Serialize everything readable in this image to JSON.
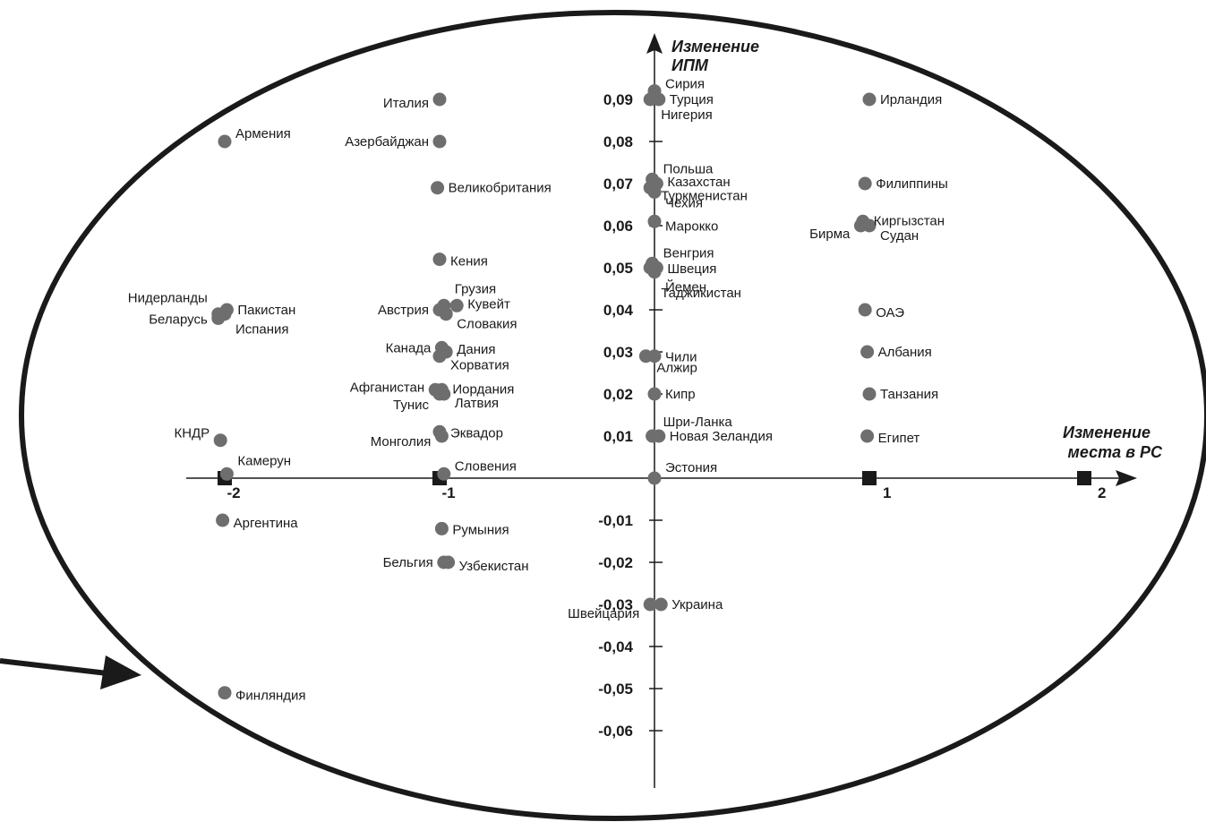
{
  "chart_data": {
    "type": "scatter",
    "xlabel": "Изменение места в РС",
    "ylabel": "Изменение ИПМ",
    "x_ticks": [
      {
        "value": -2,
        "label": "-2"
      },
      {
        "value": -1,
        "label": "-1"
      },
      {
        "value": 1,
        "label": "1"
      },
      {
        "value": 2,
        "label": "2"
      }
    ],
    "y_ticks": [
      {
        "value": 0.09,
        "label": "0,09"
      },
      {
        "value": 0.08,
        "label": "0,08"
      },
      {
        "value": 0.07,
        "label": "0,07"
      },
      {
        "value": 0.06,
        "label": "0,06"
      },
      {
        "value": 0.05,
        "label": "0,05"
      },
      {
        "value": 0.04,
        "label": "0,04"
      },
      {
        "value": 0.03,
        "label": "0,03"
      },
      {
        "value": 0.02,
        "label": "0,02"
      },
      {
        "value": 0.01,
        "label": "0,01"
      },
      {
        "value": -0.01,
        "label": "-0,01"
      },
      {
        "value": -0.02,
        "label": "-0,02"
      },
      {
        "value": -0.03,
        "label": "-0,03"
      },
      {
        "value": -0.04,
        "label": "-0,04"
      },
      {
        "value": -0.05,
        "label": "-0,05"
      },
      {
        "value": -0.06,
        "label": "-0,06"
      }
    ],
    "points": [
      {
        "label": "Сирия",
        "x": 0.0,
        "y": 0.092,
        "la": "right",
        "dy": -8
      },
      {
        "label": "Турция",
        "x": 0.02,
        "y": 0.09,
        "la": "right",
        "dy": 0
      },
      {
        "label": "Нигерия",
        "x": -0.02,
        "y": 0.09,
        "la": "right",
        "dy": 17
      },
      {
        "label": "Италия",
        "x": -1.0,
        "y": 0.09,
        "la": "left",
        "dy": 4
      },
      {
        "label": "Ирландия",
        "x": 1.0,
        "y": 0.09,
        "la": "right",
        "dy": 0
      },
      {
        "label": "Армения",
        "x": -2.0,
        "y": 0.08,
        "la": "right",
        "dy": -9
      },
      {
        "label": "Азербайджан",
        "x": -1.0,
        "y": 0.08,
        "la": "left",
        "dy": 0
      },
      {
        "label": "Великобритания",
        "x": -1.01,
        "y": 0.069,
        "la": "right",
        "dy": 0
      },
      {
        "label": "Польша",
        "x": -0.01,
        "y": 0.071,
        "la": "right",
        "dy": -12
      },
      {
        "label": "Казахстан",
        "x": 0.01,
        "y": 0.07,
        "la": "right",
        "dy": -2
      },
      {
        "label": "Туркменистан",
        "x": -0.02,
        "y": 0.069,
        "la": "right",
        "dy": 9
      },
      {
        "label": "Чехия",
        "x": 0.0,
        "y": 0.068,
        "la": "right",
        "dy": 12
      },
      {
        "label": "Филиппины",
        "x": 0.98,
        "y": 0.07,
        "la": "right",
        "dy": 0
      },
      {
        "label": "Марокко",
        "x": 0.0,
        "y": 0.061,
        "la": "right",
        "dy": 5
      },
      {
        "label": "Киргызстан",
        "x": 0.97,
        "y": 0.061,
        "la": "right",
        "dy": -1
      },
      {
        "label": "Судан",
        "x": 1.0,
        "y": 0.06,
        "la": "right",
        "dy": 11
      },
      {
        "label": "Бирма",
        "x": 0.96,
        "y": 0.06,
        "la": "left",
        "dy": 9
      },
      {
        "label": "Кения",
        "x": -1.0,
        "y": 0.052,
        "la": "right",
        "dy": 2
      },
      {
        "label": "Венгрия",
        "x": -0.01,
        "y": 0.051,
        "la": "right",
        "dy": -12
      },
      {
        "label": "Швеция",
        "x": 0.01,
        "y": 0.05,
        "la": "right",
        "dy": 1
      },
      {
        "label": "Йемен",
        "x": 0.0,
        "y": 0.049,
        "la": "right",
        "dy": 17
      },
      {
        "label": "Таджикистан",
        "x": -0.02,
        "y": 0.05,
        "la": "right",
        "dy": 28
      },
      {
        "label": "Нидерланды",
        "x": -2.03,
        "y": 0.039,
        "la": "left",
        "dy": -18
      },
      {
        "label": "Пакистан",
        "x": -1.99,
        "y": 0.04,
        "la": "right",
        "dy": 0
      },
      {
        "label": "Беларусь",
        "x": -2.03,
        "y": 0.038,
        "la": "left",
        "dy": 1
      },
      {
        "label": "Испания",
        "x": -2.0,
        "y": 0.039,
        "la": "right",
        "dy": 17
      },
      {
        "label": "Грузия",
        "x": -0.98,
        "y": 0.041,
        "la": "right",
        "dy": -19
      },
      {
        "label": "Австрия",
        "x": -1.0,
        "y": 0.04,
        "la": "left",
        "dy": 0
      },
      {
        "label": "Кувейт",
        "x": -0.92,
        "y": 0.041,
        "la": "right",
        "dy": -2
      },
      {
        "label": "Словакия",
        "x": -0.97,
        "y": 0.039,
        "la": "right",
        "dy": 11
      },
      {
        "label": "ОАЭ",
        "x": 0.98,
        "y": 0.04,
        "la": "right",
        "dy": 3
      },
      {
        "label": "Канада",
        "x": -0.99,
        "y": 0.031,
        "la": "left",
        "dy": 0
      },
      {
        "label": "Дания",
        "x": -0.97,
        "y": 0.03,
        "la": "right",
        "dy": -3
      },
      {
        "label": "Хорватия",
        "x": -1.0,
        "y": 0.029,
        "la": "right",
        "dy": 10
      },
      {
        "label": "Чили",
        "x": 0.0,
        "y": 0.029,
        "la": "right",
        "dy": 1
      },
      {
        "label": "Алжир",
        "x": -0.04,
        "y": 0.029,
        "la": "right",
        "dy": 13
      },
      {
        "label": "Албания",
        "x": 0.99,
        "y": 0.03,
        "la": "right",
        "dy": 0
      },
      {
        "label": "Афганистан",
        "x": -1.02,
        "y": 0.021,
        "la": "left",
        "dy": -3
      },
      {
        "label": "Иордания",
        "x": -0.99,
        "y": 0.021,
        "la": "right",
        "dy": -1
      },
      {
        "label": "Тунис",
        "x": -1.0,
        "y": 0.02,
        "la": "left",
        "dy": 12
      },
      {
        "label": "Латвия",
        "x": -0.98,
        "y": 0.02,
        "la": "right",
        "dy": 10
      },
      {
        "label": "Кипр",
        "x": 0.0,
        "y": 0.02,
        "la": "right",
        "dy": 0
      },
      {
        "label": "Танзания",
        "x": 1.0,
        "y": 0.02,
        "la": "right",
        "dy": 0
      },
      {
        "label": "Эквадор",
        "x": -1.0,
        "y": 0.011,
        "la": "right",
        "dy": 1
      },
      {
        "label": "Монголия",
        "x": -0.99,
        "y": 0.01,
        "la": "left",
        "dy": 6
      },
      {
        "label": "Шри-Ланка",
        "x": -0.01,
        "y": 0.01,
        "la": "right",
        "dy": -16
      },
      {
        "label": "Новая Зеландия",
        "x": 0.02,
        "y": 0.01,
        "la": "right",
        "dy": 0
      },
      {
        "label": "Египет",
        "x": 0.99,
        "y": 0.01,
        "la": "right",
        "dy": 2
      },
      {
        "label": "КНДР",
        "x": -2.02,
        "y": 0.009,
        "la": "left",
        "dy": -8
      },
      {
        "label": "Камерун",
        "x": -1.99,
        "y": 0.001,
        "la": "right",
        "dy": -15
      },
      {
        "label": "Словения",
        "x": -0.98,
        "y": 0.001,
        "la": "right",
        "dy": -9
      },
      {
        "label": "Эстония",
        "x": 0.0,
        "y": 0.0,
        "la": "right",
        "dy": -12
      },
      {
        "label": "Аргентина",
        "x": -2.01,
        "y": -0.01,
        "la": "right",
        "dy": 3
      },
      {
        "label": "Румыния",
        "x": -0.99,
        "y": -0.012,
        "la": "right",
        "dy": 1
      },
      {
        "label": "Бельгия",
        "x": -0.98,
        "y": -0.02,
        "la": "left",
        "dy": 0
      },
      {
        "label": "Узбекистан",
        "x": -0.96,
        "y": -0.02,
        "la": "right",
        "dy": 4
      },
      {
        "label": "Швейцария",
        "x": -0.02,
        "y": -0.03,
        "la": "left",
        "dy": 10
      },
      {
        "label": "Украина",
        "x": 0.03,
        "y": -0.03,
        "la": "right",
        "dy": 0
      },
      {
        "label": "Финляндия",
        "x": -2.0,
        "y": -0.051,
        "la": "right",
        "dy": 3
      }
    ],
    "marker_color": "#6e6e6e",
    "axis_color": "#1a1a1a"
  }
}
